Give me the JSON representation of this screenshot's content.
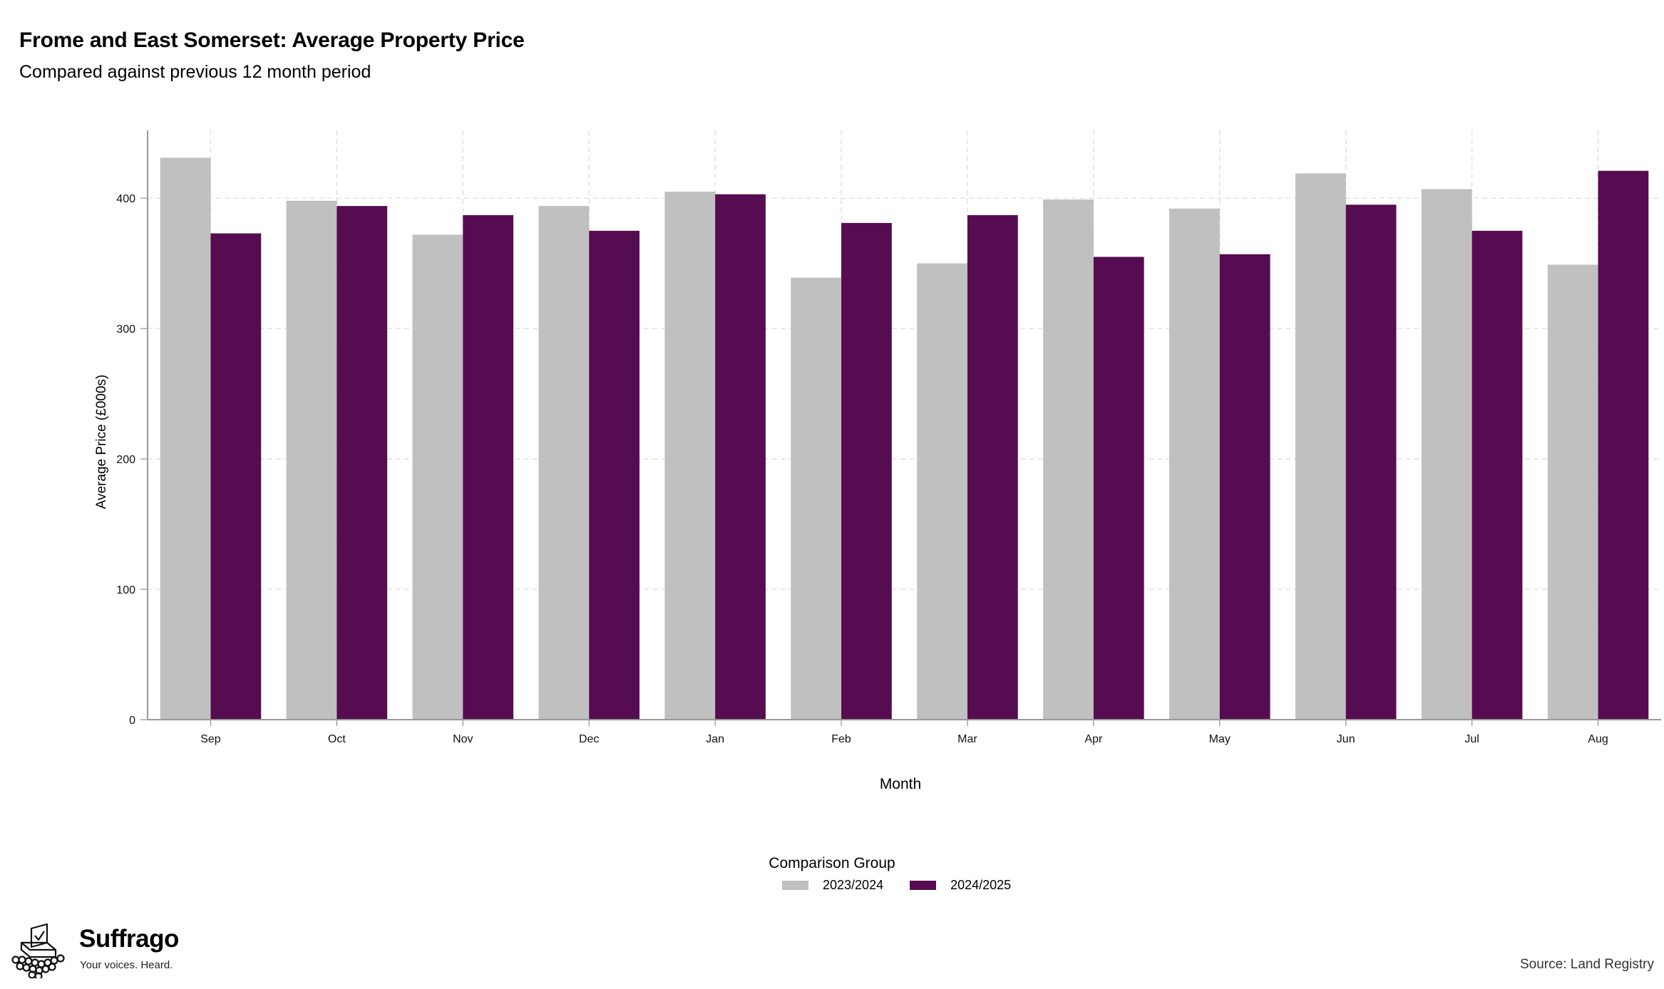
{
  "header": {
    "title": "Frome and East Somerset: Average Property Price",
    "subtitle": "Compared against previous 12 month period"
  },
  "chart_data": {
    "type": "bar",
    "title": "Frome and East Somerset: Average Property Price",
    "subtitle": "Compared against previous 12 month period",
    "xlabel": "Month",
    "ylabel": "Average Price (£000s)",
    "categories": [
      "Sep",
      "Oct",
      "Nov",
      "Dec",
      "Jan",
      "Feb",
      "Mar",
      "Apr",
      "May",
      "Jun",
      "Jul",
      "Aug"
    ],
    "series": [
      {
        "name": "2023/2024",
        "color": "#c0c0c0",
        "values": [
          431,
          398,
          372,
          394,
          405,
          339,
          350,
          399,
          392,
          419,
          407,
          349
        ]
      },
      {
        "name": "2024/2025",
        "color": "#560c51",
        "values": [
          373,
          394,
          387,
          375,
          403,
          381,
          387,
          355,
          357,
          395,
          375,
          421
        ]
      }
    ],
    "ylim": [
      0,
      452
    ],
    "yticks": [
      0,
      100,
      200,
      300,
      400
    ],
    "grid": true,
    "legend": {
      "title": "Comparison Group",
      "position": "bottom"
    }
  },
  "branding": {
    "name": "Suffrago",
    "tagline": "Your voices. Heard.",
    "logo_icon": "ballot-box-icon"
  },
  "footer": {
    "source": "Source: Land Registry"
  }
}
